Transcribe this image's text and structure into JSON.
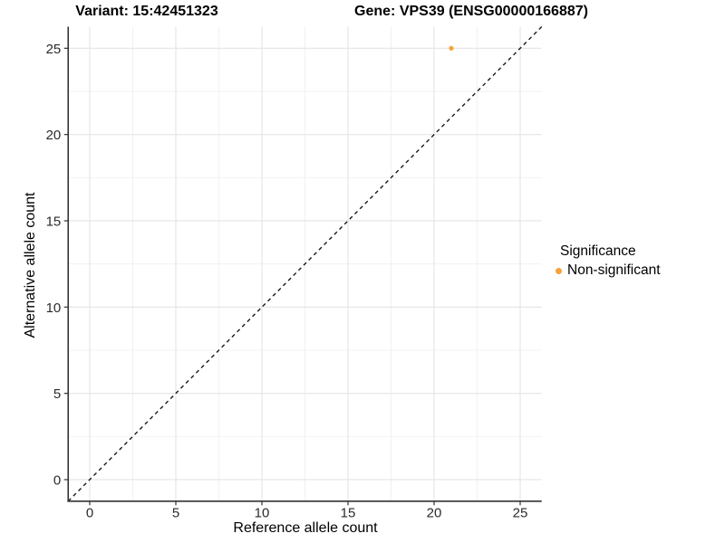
{
  "titles": {
    "variant": "Variant: 15:42451323",
    "gene": "Gene: VPS39 (ENSG00000166887)"
  },
  "axes": {
    "x_label": "Reference allele count",
    "y_label": "Alternative allele count"
  },
  "legend": {
    "title": "Significance",
    "items": [
      {
        "label": "Non-significant",
        "color": "#F9A13A"
      }
    ]
  },
  "colors": {
    "point": "#F9A13A",
    "grid_major": "#E4E4E4",
    "grid_minor": "#F0F0F0",
    "axis_line": "#333333",
    "tick_label": "#2b2b2b",
    "identity_line": "#1a1a1a",
    "background": "#ffffff"
  },
  "chart_data": {
    "type": "scatter",
    "title": "Variant: 15:42451323 — Gene: VPS39 (ENSG00000166887)",
    "xlabel": "Reference allele count",
    "ylabel": "Alternative allele count",
    "xlim": [
      -1.25,
      26.25
    ],
    "ylim": [
      -1.25,
      26.25
    ],
    "x_ticks": [
      0,
      5,
      10,
      15,
      20,
      25
    ],
    "y_ticks": [
      0,
      5,
      10,
      15,
      20,
      25
    ],
    "x_minor_ticks": [
      2.5,
      7.5,
      12.5,
      17.5,
      22.5
    ],
    "y_minor_ticks": [
      2.5,
      7.5,
      12.5,
      17.5,
      22.5
    ],
    "grid": "major+minor",
    "legend_position": "right",
    "series": [
      {
        "name": "Non-significant",
        "color": "#F9A13A",
        "points": [
          {
            "x": 21,
            "y": 25
          }
        ]
      }
    ],
    "reference_line": {
      "slope": 1,
      "intercept": 0,
      "style": "dashed",
      "color": "#1a1a1a"
    }
  }
}
